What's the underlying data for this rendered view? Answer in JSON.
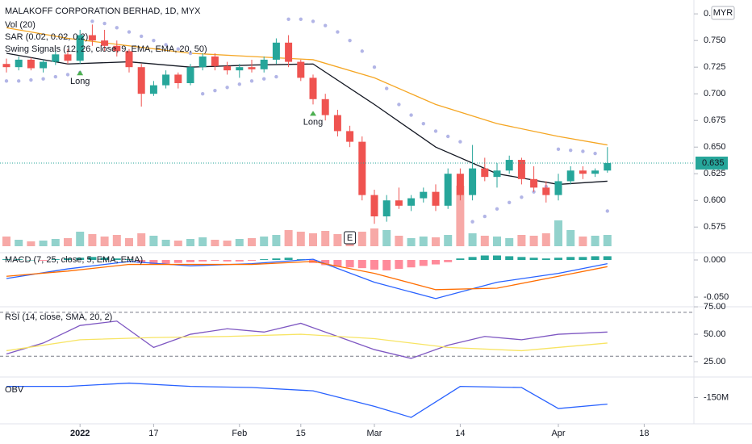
{
  "chart_data": [
    {
      "type": "candlestick",
      "title": "MALAKOFF CORPORATION BERHAD, 1D, MYX",
      "currency": "MYR",
      "indicators": [
        "Vol (20)",
        "SAR (0.02, 0.02, 0.2)",
        "Swing Signals (12, 26, close, 9, EMA, EMA, 20, 50)"
      ],
      "up_color": "#26a69a",
      "down_color": "#ef5350",
      "candles": [
        [
          0.728,
          0.733,
          0.72,
          0.725
        ],
        [
          0.725,
          0.735,
          0.722,
          0.732
        ],
        [
          0.732,
          0.734,
          0.722,
          0.724
        ],
        [
          0.724,
          0.732,
          0.72,
          0.73
        ],
        [
          0.73,
          0.74,
          0.727,
          0.737
        ],
        [
          0.737,
          0.742,
          0.728,
          0.731
        ],
        [
          0.731,
          0.76,
          0.728,
          0.755
        ],
        [
          0.755,
          0.765,
          0.745,
          0.75
        ],
        [
          0.75,
          0.76,
          0.74,
          0.745
        ],
        [
          0.745,
          0.75,
          0.735,
          0.74
        ],
        [
          0.74,
          0.742,
          0.72,
          0.725
        ],
        [
          0.725,
          0.728,
          0.688,
          0.7
        ],
        [
          0.7,
          0.712,
          0.698,
          0.708
        ],
        [
          0.708,
          0.722,
          0.705,
          0.718
        ],
        [
          0.718,
          0.72,
          0.705,
          0.71
        ],
        [
          0.71,
          0.728,
          0.708,
          0.725
        ],
        [
          0.725,
          0.738,
          0.722,
          0.735
        ],
        [
          0.735,
          0.738,
          0.722,
          0.726
        ],
        [
          0.726,
          0.73,
          0.718,
          0.722
        ],
        [
          0.722,
          0.728,
          0.715,
          0.725
        ],
        [
          0.725,
          0.732,
          0.72,
          0.723
        ],
        [
          0.723,
          0.735,
          0.72,
          0.732
        ],
        [
          0.732,
          0.752,
          0.728,
          0.748
        ],
        [
          0.748,
          0.755,
          0.725,
          0.73
        ],
        [
          0.73,
          0.732,
          0.712,
          0.715
        ],
        [
          0.715,
          0.718,
          0.69,
          0.695
        ],
        [
          0.695,
          0.7,
          0.675,
          0.68
        ],
        [
          0.68,
          0.685,
          0.66,
          0.665
        ],
        [
          0.665,
          0.67,
          0.65,
          0.655
        ],
        [
          0.655,
          0.66,
          0.6,
          0.605
        ],
        [
          0.605,
          0.61,
          0.578,
          0.585
        ],
        [
          0.585,
          0.605,
          0.58,
          0.6
        ],
        [
          0.6,
          0.612,
          0.592,
          0.595
        ],
        [
          0.595,
          0.605,
          0.59,
          0.602
        ],
        [
          0.602,
          0.612,
          0.598,
          0.608
        ],
        [
          0.608,
          0.615,
          0.59,
          0.595
        ],
        [
          0.595,
          0.63,
          0.592,
          0.625
        ],
        [
          0.625,
          0.63,
          0.6,
          0.605
        ],
        [
          0.605,
          0.652,
          0.6,
          0.63
        ],
        [
          0.63,
          0.64,
          0.618,
          0.622
        ],
        [
          0.622,
          0.635,
          0.612,
          0.628
        ],
        [
          0.628,
          0.642,
          0.625,
          0.638
        ],
        [
          0.638,
          0.64,
          0.615,
          0.62
        ],
        [
          0.62,
          0.632,
          0.608,
          0.612
        ],
        [
          0.612,
          0.618,
          0.598,
          0.605
        ],
        [
          0.605,
          0.625,
          0.6,
          0.618
        ],
        [
          0.618,
          0.632,
          0.615,
          0.628
        ],
        [
          0.628,
          0.632,
          0.62,
          0.625
        ],
        [
          0.625,
          0.63,
          0.622,
          0.628
        ],
        [
          0.628,
          0.65,
          0.626,
          0.635
        ]
      ],
      "volume": [
        1.2,
        0.8,
        0.6,
        0.7,
        0.9,
        1.0,
        1.8,
        1.5,
        1.2,
        1.4,
        1.0,
        1.6,
        1.3,
        0.8,
        0.7,
        0.9,
        1.1,
        0.8,
        0.7,
        0.9,
        1.0,
        1.2,
        1.4,
        2.0,
        1.8,
        1.6,
        1.9,
        1.5,
        1.4,
        1.8,
        2.2,
        2.0,
        1.3,
        1.0,
        1.2,
        1.1,
        1.4,
        7.5,
        1.6,
        1.3,
        1.2,
        1.0,
        1.4,
        1.3,
        1.6,
        3.2,
        2.0,
        1.2,
        1.3,
        1.4
      ],
      "volume_ylim": [
        0,
        10
      ],
      "sar": {
        "color": "#b2b5e6",
        "values": [
          0.712,
          0.712,
          0.713,
          0.714,
          0.716,
          0.718,
          0.72,
          0.768,
          0.766,
          0.762,
          0.758,
          0.754,
          0.75,
          0.746,
          0.742,
          0.738,
          0.7,
          0.703,
          0.706,
          0.709,
          0.712,
          0.714,
          0.716,
          0.77,
          0.77,
          0.768,
          0.764,
          0.758,
          0.75,
          0.74,
          0.725,
          0.705,
          0.69,
          0.68,
          0.672,
          0.665,
          0.66,
          0.655,
          0.58,
          0.585,
          0.592,
          0.598,
          0.603,
          0.608,
          0.613,
          0.648,
          0.647,
          0.646,
          0.644,
          0.59
        ]
      },
      "lines": [
        {
          "color": "#131722",
          "x": [
            0,
            5,
            10,
            15,
            20,
            25,
            30,
            35,
            40,
            45,
            49
          ],
          "values": [
            0.738,
            0.728,
            0.73,
            0.725,
            0.727,
            0.728,
            0.69,
            0.65,
            0.625,
            0.615,
            0.618
          ]
        },
        {
          "color": "#f5a623",
          "x": [
            0,
            5,
            10,
            15,
            20,
            25,
            30,
            35,
            40,
            45,
            49
          ],
          "values": [
            0.762,
            0.752,
            0.745,
            0.738,
            0.735,
            0.732,
            0.715,
            0.69,
            0.672,
            0.66,
            0.652
          ]
        }
      ],
      "signals": [
        {
          "index": 6,
          "label": "Long"
        },
        {
          "index": 25,
          "label": "Long"
        }
      ],
      "earnings": {
        "index": 28,
        "label": "E"
      },
      "last_price": {
        "value": 0.635,
        "label": "0.635"
      },
      "ylim": [
        0.557,
        0.788
      ],
      "yticks": [
        {
          "value": 0.575,
          "label": "0.575"
        },
        {
          "value": 0.6,
          "label": "0.600"
        },
        0.625,
        {
          "value": 0.65,
          "label": "0.650"
        },
        0.675,
        {
          "value": 0.7,
          "label": "0.700"
        },
        0.725,
        {
          "value": 0.75,
          "label": "0.750"
        },
        0.775
      ],
      "xticks": [
        {
          "value": 6,
          "label": "2022"
        },
        {
          "value": 12,
          "label": "17"
        },
        {
          "value": 19,
          "label": "Feb"
        },
        {
          "value": 24,
          "label": "15"
        },
        {
          "value": 30,
          "label": "Mar"
        },
        {
          "value": 37,
          "label": "14"
        },
        {
          "value": 45,
          "label": "Apr"
        },
        {
          "value": 52,
          "label": "18"
        }
      ]
    },
    {
      "type": "macd",
      "title": "MACD (7, 25, close, 5, EMA, EMA)",
      "histogram": [
        0.001,
        0.001,
        0.0,
        -0.001,
        0.001,
        0.002,
        0.003,
        0.004,
        0.003,
        0.002,
        0.001,
        -0.004,
        -0.006,
        -0.005,
        -0.004,
        -0.003,
        -0.002,
        -0.001,
        -0.002,
        -0.002,
        -0.001,
        0.001,
        0.002,
        0.003,
        0.001,
        -0.004,
        -0.007,
        -0.009,
        -0.01,
        -0.011,
        -0.013,
        -0.014,
        -0.012,
        -0.01,
        -0.008,
        -0.006,
        -0.003,
        0.002,
        0.004,
        0.006,
        0.006,
        0.005,
        0.004,
        0.003,
        0.002,
        0.003,
        0.004,
        0.004,
        0.005,
        0.005
      ],
      "lines": [
        {
          "color": "#2962ff",
          "x": [
            0,
            5,
            10,
            15,
            20,
            25,
            30,
            35,
            40,
            45,
            49
          ],
          "values": [
            -0.025,
            -0.012,
            -0.002,
            -0.008,
            -0.005,
            0.001,
            -0.03,
            -0.052,
            -0.03,
            -0.018,
            -0.005
          ]
        },
        {
          "color": "#ff6d00",
          "x": [
            0,
            5,
            10,
            15,
            20,
            25,
            30,
            35,
            40,
            45,
            49
          ],
          "values": [
            -0.022,
            -0.015,
            -0.006,
            -0.006,
            -0.006,
            -0.002,
            -0.018,
            -0.04,
            -0.038,
            -0.022,
            -0.009
          ]
        }
      ],
      "ylim": [
        -0.063,
        0.0098
      ],
      "yticks": [
        {
          "value": 0,
          "label": "0.000"
        },
        {
          "value": -0.05,
          "label": "-0.050"
        }
      ]
    },
    {
      "type": "rsi",
      "title": "RSI (14, close, SMA, 20, 2)",
      "bands": [
        70,
        30
      ],
      "lines": [
        {
          "color": "#7e57c2",
          "x": [
            0,
            3,
            6,
            9,
            12,
            15,
            18,
            21,
            24,
            27,
            30,
            33,
            36,
            39,
            42,
            45,
            49
          ],
          "values": [
            32,
            42,
            58,
            62,
            38,
            50,
            55,
            52,
            60,
            48,
            36,
            28,
            40,
            48,
            45,
            50,
            52
          ]
        },
        {
          "color": "#f7e463",
          "x": [
            0,
            6,
            12,
            18,
            24,
            30,
            36,
            42,
            49
          ],
          "values": [
            35,
            45,
            47,
            48,
            50,
            46,
            38,
            35,
            42
          ]
        }
      ],
      "ylim": [
        12.5,
        78
      ],
      "yticks": [
        {
          "value": 75,
          "label": "75.00"
        },
        {
          "value": 50,
          "label": "50.00"
        },
        {
          "value": 25,
          "label": "25.00"
        }
      ]
    },
    {
      "type": "obv",
      "title": "OBV",
      "lines": [
        {
          "color": "#2962ff",
          "x": [
            0,
            5,
            10,
            15,
            20,
            25,
            30,
            33,
            37,
            42,
            45,
            49
          ],
          "values": [
            -140,
            -140,
            -137,
            -140,
            -141,
            -144,
            -158,
            -168,
            -140,
            -141,
            -160,
            -156
          ]
        }
      ],
      "ylim": [
        -173.8,
        -131.5
      ],
      "yticks": [
        {
          "value": -150,
          "label": "-150M"
        }
      ]
    }
  ]
}
